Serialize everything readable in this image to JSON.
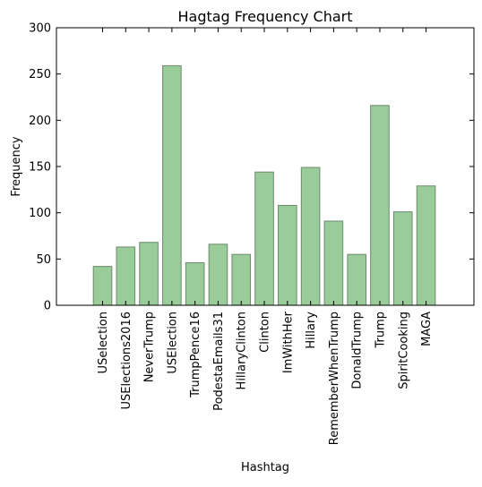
{
  "chart_data": {
    "type": "bar",
    "title": "Hagtag Frequency Chart",
    "xlabel": "Hashtag",
    "ylabel": "Frequency",
    "categories": [
      "USelection",
      "USElections2016",
      "NeverTrump",
      "USElection",
      "TrumpPence16",
      "PodestaEmails31",
      "HillaryClinton",
      "Clinton",
      "ImWithHer",
      "Hillary",
      "RememberWhenTrump",
      "DonaldTrump",
      "Trump",
      "SpiritCooking",
      "MAGA"
    ],
    "values": [
      42,
      63,
      68,
      259,
      46,
      66,
      55,
      144,
      108,
      149,
      91,
      55,
      216,
      101,
      129
    ],
    "ylim": [
      0,
      300
    ],
    "yticks": [
      0,
      50,
      100,
      150,
      200,
      250,
      300
    ],
    "grid": false,
    "bar_color": "#99cc99",
    "bar_edge_color": "#6e8a6e"
  }
}
